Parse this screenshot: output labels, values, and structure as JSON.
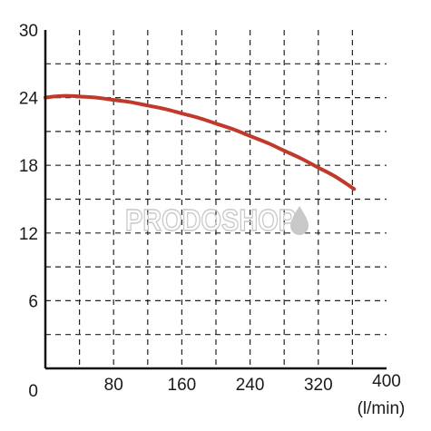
{
  "chart_data": {
    "type": "line",
    "title": "",
    "xlabel": "",
    "ylabel": "",
    "x_unit": "(l/min)",
    "xlim": [
      0,
      400
    ],
    "ylim": [
      0,
      30
    ],
    "x_ticks": [
      {
        "value": 0,
        "label": "0"
      },
      {
        "value": 80,
        "label": "80"
      },
      {
        "value": 160,
        "label": "160"
      },
      {
        "value": 240,
        "label": "240"
      },
      {
        "value": 320,
        "label": "320"
      },
      {
        "value": 400,
        "label": "400"
      }
    ],
    "y_ticks": [
      {
        "value": 6,
        "label": "6"
      },
      {
        "value": 12,
        "label": "12"
      },
      {
        "value": 18,
        "label": "18"
      },
      {
        "value": 24,
        "label": "24"
      },
      {
        "value": 30,
        "label": "30"
      }
    ],
    "x_grid": [
      40,
      80,
      120,
      160,
      200,
      240,
      280,
      320,
      360
    ],
    "y_grid": [
      3,
      6,
      9,
      12,
      15,
      18,
      21,
      24,
      27
    ],
    "grid": true,
    "series": [
      {
        "color": "#c0392b",
        "x": [
          0,
          10,
          20,
          30,
          40,
          60,
          80,
          100,
          120,
          140,
          160,
          180,
          200,
          220,
          240,
          260,
          280,
          300,
          320,
          340,
          362
        ],
        "y": [
          24.0,
          24.1,
          24.15,
          24.15,
          24.1,
          24.0,
          23.8,
          23.6,
          23.3,
          23.0,
          22.6,
          22.2,
          21.7,
          21.2,
          20.6,
          20.0,
          19.3,
          18.6,
          17.8,
          17.0,
          15.9
        ]
      }
    ]
  },
  "watermark": {
    "text": "PRODOSHOP",
    "color": "#c8c8c8"
  }
}
